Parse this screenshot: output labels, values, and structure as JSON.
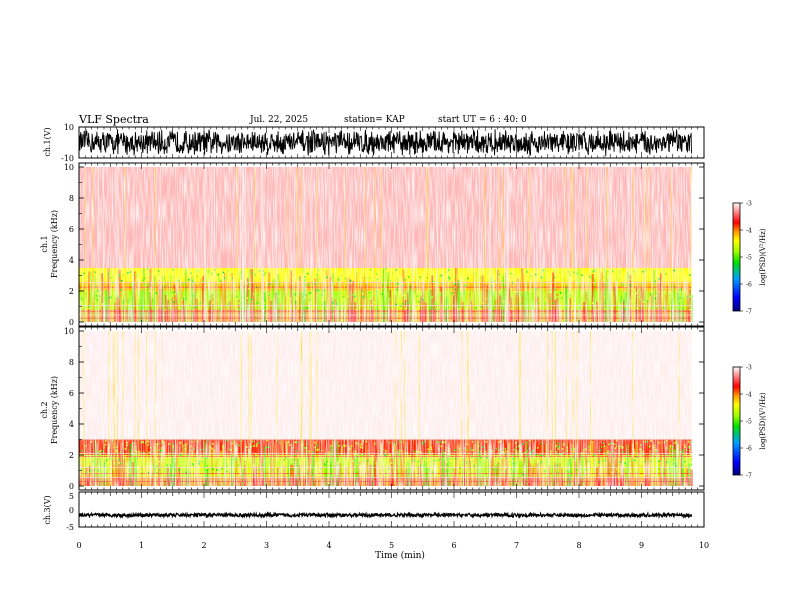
{
  "header": {
    "title": "VLF Spectra",
    "date": "Jul. 22, 2025",
    "station": "station= KAP",
    "start_ut": "start UT = 6 : 40: 0"
  },
  "colors": {
    "spectrogram": [
      "#000080",
      "#0000ff",
      "#00a0ff",
      "#00e000",
      "#a0ff00",
      "#ffff00",
      "#ffa000",
      "#ff0000",
      "#ffffff"
    ],
    "trace": "#000000",
    "axes": "#000000"
  },
  "chart_data": [
    {
      "type": "line",
      "name": "ch1-waveform",
      "ylabel": "ch.1(V)",
      "ylim": [
        -10,
        10
      ],
      "y_ticks": [
        "10",
        "-10"
      ],
      "xlim": [
        0,
        10
      ],
      "data_extent_min": 9.8,
      "description_values": {
        "mean": 0,
        "range": [
          -9,
          9
        ]
      }
    },
    {
      "type": "heatmap",
      "name": "ch1-spectrogram",
      "ylabel_line1": "ch.1",
      "ylabel_line2": "Frequency (kHz)",
      "ylim": [
        0,
        10
      ],
      "y_ticks": [
        "0",
        "2",
        "4",
        "6",
        "8",
        "10"
      ],
      "xlim": [
        0,
        10
      ],
      "data_extent_min": 9.8,
      "colorbar": {
        "label": "log(PSD)(V²/Hz)",
        "ticks": [
          "-3",
          "-4",
          "-5",
          "-6",
          "-7"
        ],
        "range": [
          -7,
          -3
        ]
      },
      "bands_khz": [
        {
          "from": 0.0,
          "to": 0.8,
          "level": -3.3
        },
        {
          "from": 0.8,
          "to": 2.0,
          "level": -4.7
        },
        {
          "from": 2.0,
          "to": 2.6,
          "level": -4.2
        },
        {
          "from": 2.6,
          "to": 3.5,
          "level": -4.4
        },
        {
          "from": 3.5,
          "to": 10.0,
          "level": -3.2
        }
      ]
    },
    {
      "type": "heatmap",
      "name": "ch2-spectrogram",
      "ylabel_line1": "ch.2",
      "ylabel_line2": "Frequency (kHz)",
      "ylim": [
        0,
        10
      ],
      "y_ticks": [
        "0",
        "2",
        "4",
        "6",
        "8",
        "10"
      ],
      "xlim": [
        0,
        10
      ],
      "data_extent_min": 9.8,
      "colorbar": {
        "label": "log(PSD)(V²/Hz)",
        "ticks": [
          "-3",
          "-4",
          "-5",
          "-6",
          "-7"
        ],
        "range": [
          -7,
          -3
        ]
      },
      "bands_khz": [
        {
          "from": 0.0,
          "to": 0.6,
          "level": -3.5
        },
        {
          "from": 0.6,
          "to": 2.0,
          "level": -4.6
        },
        {
          "from": 2.0,
          "to": 3.0,
          "level": -3.8
        },
        {
          "from": 3.0,
          "to": 10.0,
          "level": -3.05
        }
      ]
    },
    {
      "type": "line",
      "name": "ch3-waveform",
      "ylabel": "ch.3(V)",
      "ylim": [
        -5,
        5
      ],
      "y_ticks": [
        "5",
        "0",
        "-5"
      ],
      "xlim": [
        0,
        10
      ],
      "data_extent_min": 9.8,
      "description_values": {
        "mean": -1.6,
        "range": [
          -2.1,
          -1.1
        ]
      }
    }
  ],
  "x_axis": {
    "label": "Time (min)",
    "ticks": [
      "0",
      "1",
      "2",
      "3",
      "4",
      "5",
      "6",
      "7",
      "8",
      "9",
      "10"
    ]
  }
}
